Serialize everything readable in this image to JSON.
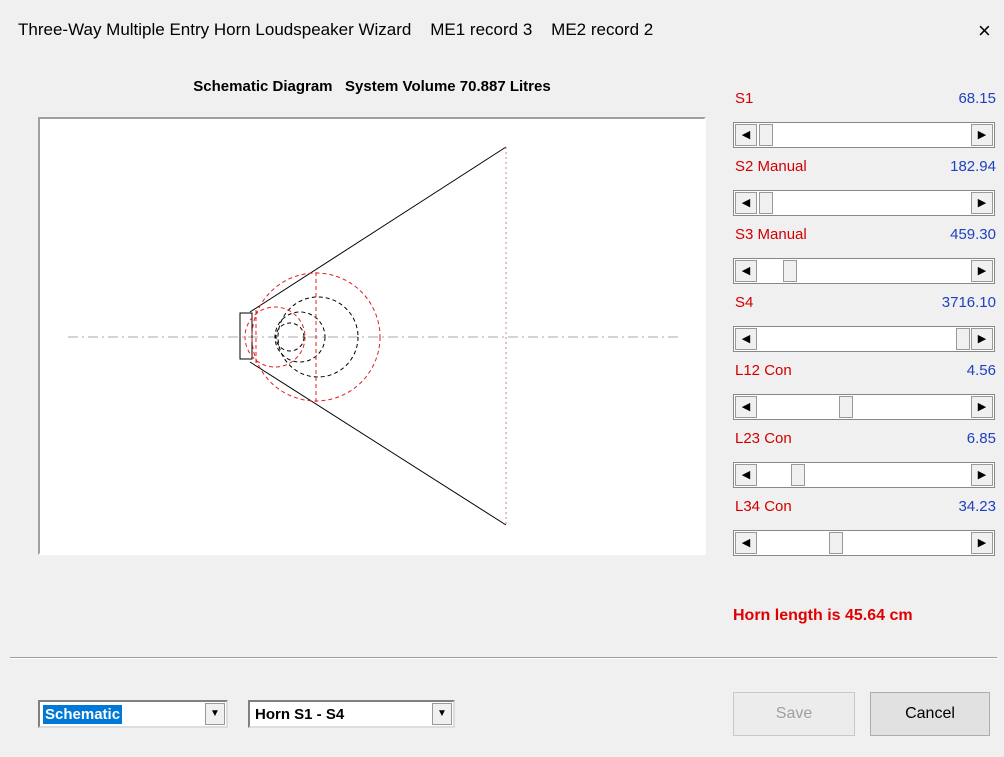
{
  "window": {
    "title": "Three-Way Multiple Entry Horn Loudspeaker Wizard    ME1 record 3    ME2 record 2",
    "close": "×"
  },
  "diagram": {
    "title": "Schematic Diagram   System Volume 70.887 Litres"
  },
  "sliders": [
    {
      "label": "S1",
      "value": "68.15"
    },
    {
      "label": "S2 Manual",
      "value": "182.94"
    },
    {
      "label": "S3 Manual",
      "value": "459.30"
    },
    {
      "label": "S4",
      "value": "3716.10"
    },
    {
      "label": "L12 Con",
      "value": "4.56"
    },
    {
      "label": "L23 Con",
      "value": "6.85"
    },
    {
      "label": "L34 Con",
      "value": "34.23"
    }
  ],
  "status": "Horn length is 45.64 cm",
  "combos": [
    "Schematic",
    "Horn S1 - S4"
  ],
  "buttons": {
    "save": "Save",
    "cancel": "Cancel"
  }
}
